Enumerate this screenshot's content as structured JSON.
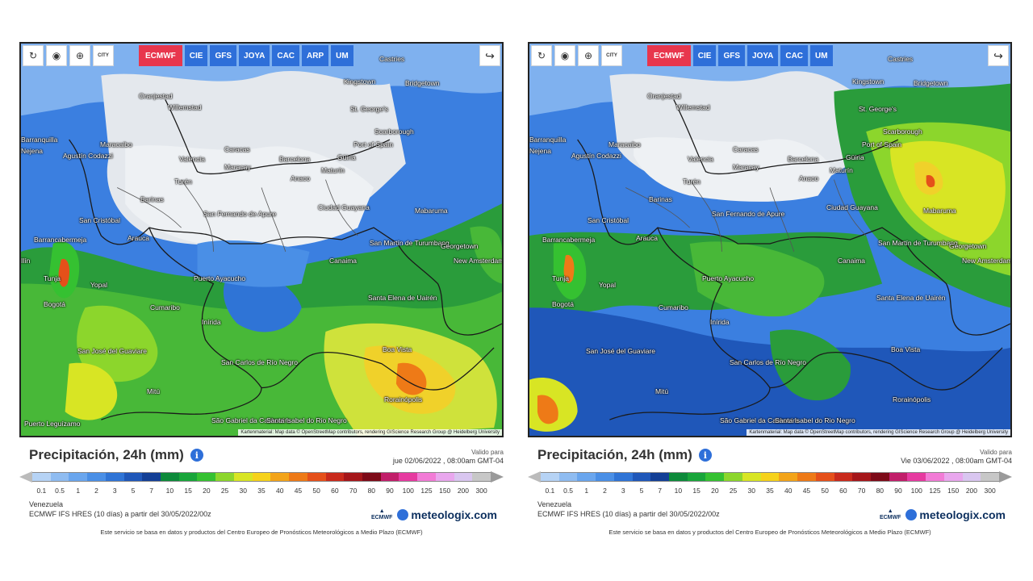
{
  "toolbar": {
    "buttons": [
      "refresh-icon",
      "location-pin-icon",
      "zoom-icon",
      "city-icon"
    ],
    "city_label": "CITY",
    "share_icon": "share-icon"
  },
  "panels": [
    {
      "models": [
        "ECMWF",
        "CIE",
        "GFS",
        "JOYA",
        "CAC",
        "ARP",
        "UM"
      ],
      "active_model": "ECMWF",
      "title": "Precipitación, 24h (mm)",
      "valid_label": "Valido para",
      "valid_date": "jue 02/06/2022 , 08:00am GMT-04",
      "region": "Venezuela",
      "model_line": "ECMWF IFS HRES (10 días) a partir del 30/05/2022/00z",
      "credit": "Kartenmaterial: Map data © OpenStreetMap contributors, rendering GIScience Research Group @ Heidelberg University"
    },
    {
      "models": [
        "ECMWF",
        "CIE",
        "GFS",
        "JOYA",
        "CAC",
        "UM"
      ],
      "active_model": "ECMWF",
      "title": "Precipitación, 24h (mm)",
      "valid_label": "Valido para",
      "valid_date": "Vie 03/06/2022 , 08:00am GMT-04",
      "region": "Venezuela",
      "model_line": "ECMWF IFS HRES (10 días) a partir del 30/05/2022/00z",
      "credit": "Kartenmaterial: Map data © OpenStreetMap contributors, rendering GIScience Research Group @ Heidelberg University"
    }
  ],
  "places": [
    "Castries",
    "Kingstown",
    "Bridgetown",
    "Oranjestad",
    "Willemstad",
    "St. George's",
    "Scarborough",
    "Port of Spain",
    "Barranquilla",
    "Maracaibo",
    "Valencia",
    "Caracas",
    "Maracay",
    "Barcelona",
    "Güiria",
    "Maturín",
    "Anaco",
    "Turén",
    "Barinas",
    "Ciudad Guayana",
    "Agustín Codazzi",
    "San Cristóbal",
    "San Fernando de Apure",
    "Mabaruma",
    "Barrancabermeja",
    "Arauca",
    "San Martín de Turumbang",
    "Georgetown",
    "Canaima",
    "New Amsterdam",
    "Tunja",
    "Yopal",
    "Puerto Ayacucho",
    "Bogotá",
    "Santa Elena de Uairén",
    "Cumaribo",
    "Inírida",
    "San José del Guaviare",
    "Boa Vista",
    "San Carlos de Río Negro",
    "Mitú",
    "Rorainópolis",
    "São Gabriel da Cachoeira",
    "Santa Isabel do Rio Negro",
    "Puerto Leguízamo",
    "Ilín",
    "Nejena"
  ],
  "legend": {
    "ticks": [
      "0.1",
      "0.5",
      "1",
      "2",
      "3",
      "5",
      "7",
      "10",
      "15",
      "20",
      "25",
      "30",
      "35",
      "40",
      "45",
      "50",
      "60",
      "70",
      "80",
      "90",
      "100",
      "125",
      "150",
      "200",
      "300"
    ],
    "colors": [
      "#b6d3f5",
      "#8fbcf1",
      "#6aa6ee",
      "#4a8fe6",
      "#2f74d6",
      "#1f57b9",
      "#133f96",
      "#0d8a3a",
      "#18a53a",
      "#35c131",
      "#8cd62c",
      "#d8e524",
      "#f6d21b",
      "#f3a419",
      "#ee7a17",
      "#e5501a",
      "#c92a1c",
      "#a5161a",
      "#7d0a18",
      "#c11e6a",
      "#e63aa0",
      "#f27bd6",
      "#e9a7ee",
      "#d9c6f0",
      "#c7c7c7"
    ]
  },
  "footer_note": "Este servicio se basa en datos y productos del Centro Europeo de Pronósticos Meteorológicos a Medio Plazo (ECMWF)",
  "brand": {
    "ecmwf": "ECMWF",
    "site": "meteologix.com"
  }
}
